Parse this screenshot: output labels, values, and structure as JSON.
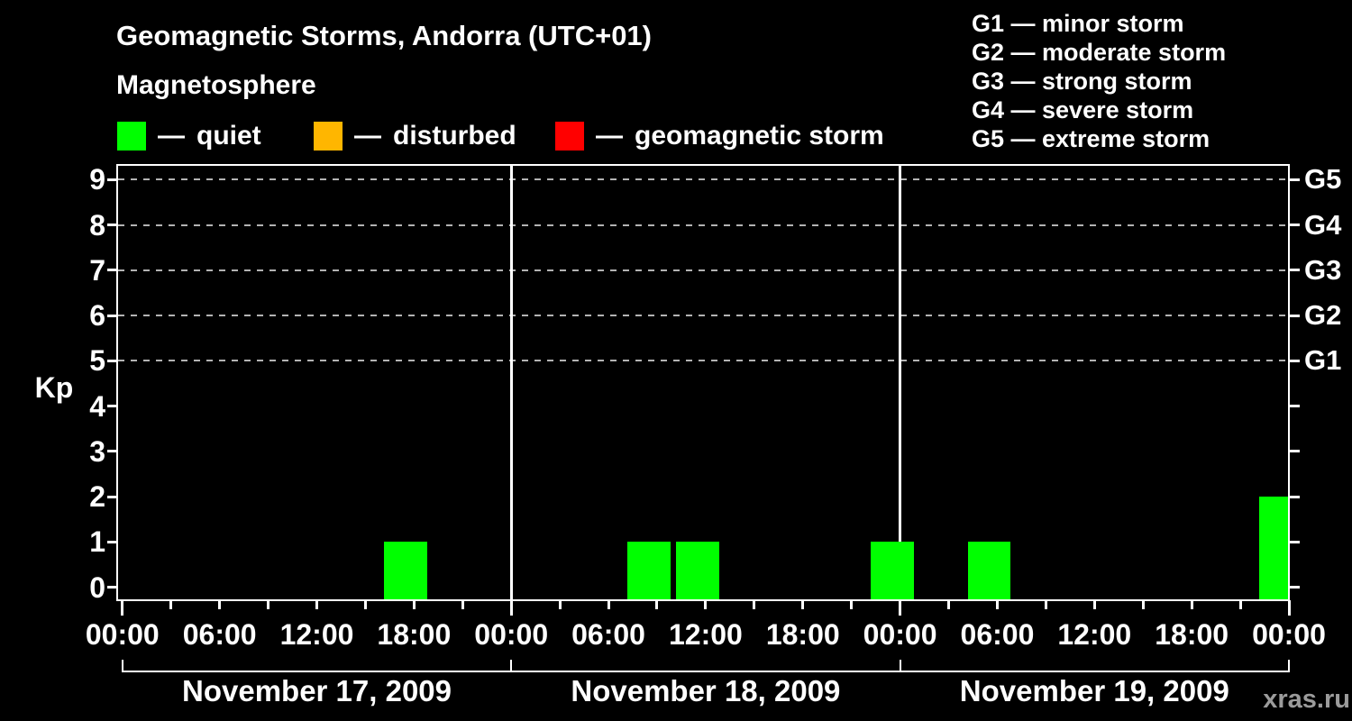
{
  "header": {
    "title": "Geomagnetic Storms, Andorra (UTC+01)",
    "subtitle": "Magnetosphere"
  },
  "legend": {
    "separator": "—",
    "items": [
      {
        "label": "quiet",
        "color": "#00ff00"
      },
      {
        "label": "disturbed",
        "color": "#ffb600"
      },
      {
        "label": "geomagnetic storm",
        "color": "#ff0000"
      }
    ]
  },
  "g_legend": {
    "separator": "—",
    "items": [
      {
        "code": "G1",
        "label": "minor storm"
      },
      {
        "code": "G2",
        "label": "moderate storm"
      },
      {
        "code": "G3",
        "label": "strong storm"
      },
      {
        "code": "G4",
        "label": "severe storm"
      },
      {
        "code": "G5",
        "label": "extreme storm"
      }
    ]
  },
  "footer": {
    "watermark": "xras.ru"
  },
  "colors": {
    "background": "#000000",
    "text": "#ffffff",
    "axis": "#ffffff",
    "grid": "#b3b3b3",
    "quiet": "#00ff00",
    "disturbed": "#ffb600",
    "storm": "#ff0000",
    "watermark": "#9b9b9b"
  },
  "chart_data": {
    "type": "bar",
    "title": "Geomagnetic Storms, Andorra (UTC+01)",
    "ylabel": "Kp",
    "ylim": [
      0,
      9
    ],
    "yticks": [
      0,
      1,
      2,
      3,
      4,
      5,
      6,
      7,
      8,
      9
    ],
    "dashed_gridlines_at_kp": [
      5,
      6,
      7,
      8,
      9
    ],
    "right_axis_labels": {
      "5": "G1",
      "6": "G2",
      "7": "G3",
      "8": "G4",
      "9": "G5"
    },
    "x_hour_labels": [
      "00:00",
      "06:00",
      "12:00",
      "18:00"
    ],
    "hour_label_step_h": 6,
    "hour_tick_step_h": 3,
    "timezone": "UTC+01",
    "utc_offset_hours": 1,
    "slot_hours": 3,
    "legend_position": "top",
    "grid": "dashed horizontal at storm levels only",
    "days": [
      {
        "date": "November 17, 2009",
        "kp_3h_utc": [
          0,
          0,
          0,
          0,
          0,
          1,
          0,
          0
        ]
      },
      {
        "date": "November 18, 2009",
        "kp_3h_utc": [
          0,
          0,
          1,
          1,
          0,
          0,
          0,
          1
        ]
      },
      {
        "date": "November 19, 2009",
        "kp_3h_utc": [
          0,
          1,
          0,
          0,
          0,
          0,
          0,
          2
        ]
      }
    ]
  }
}
